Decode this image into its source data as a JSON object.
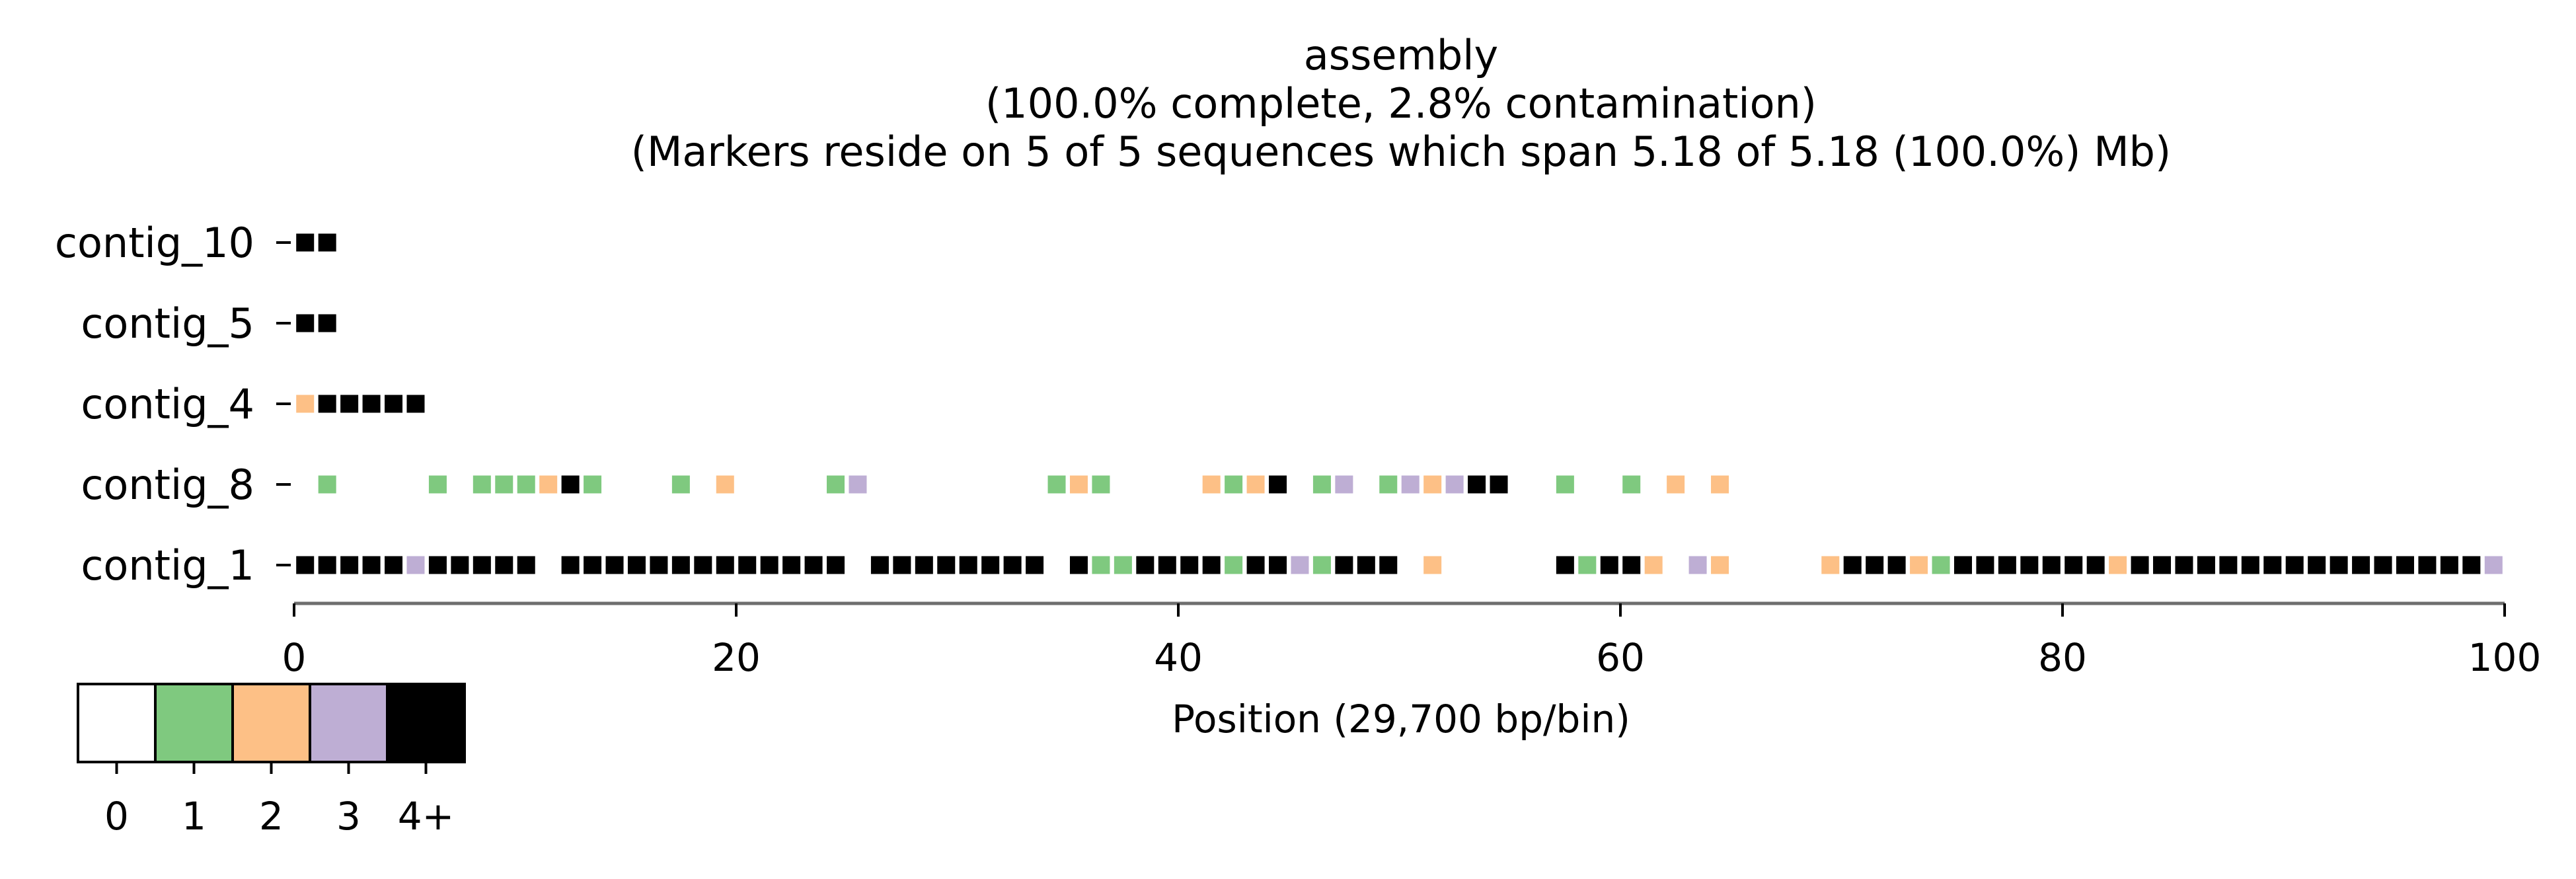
{
  "chart_data": {
    "type": "heatmap",
    "title_lines": [
      "assembly",
      "(100.0% complete, 2.8% contamination)",
      "(Markers reside on 5 of 5 sequences which span 5.18 of 5.18 (100.0%) Mb)"
    ],
    "xlabel": "Position (29,700 bp/bin)",
    "xlim": [
      0,
      100
    ],
    "xticks": [
      0,
      20,
      40,
      60,
      80,
      100
    ],
    "legend": {
      "labels": [
        "0",
        "1",
        "2",
        "3",
        "4+"
      ],
      "colors": [
        "#ffffff",
        "#7fc97f",
        "#fdc086",
        "#beaed4",
        "#000000"
      ]
    },
    "rows": [
      {
        "name": "contig_10",
        "bins": [
          [
            0.5,
            4
          ],
          [
            1.5,
            4
          ]
        ]
      },
      {
        "name": "contig_5",
        "bins": [
          [
            0.5,
            4
          ],
          [
            1.5,
            4
          ]
        ]
      },
      {
        "name": "contig_4",
        "bins": [
          [
            0.5,
            2
          ],
          [
            1.5,
            4
          ],
          [
            2.5,
            4
          ],
          [
            3.5,
            4
          ],
          [
            4.5,
            4
          ],
          [
            5.5,
            4
          ]
        ]
      },
      {
        "name": "contig_8",
        "bins": [
          [
            1.5,
            1
          ],
          [
            6.5,
            1
          ],
          [
            8.5,
            1
          ],
          [
            9.5,
            1
          ],
          [
            10.5,
            1
          ],
          [
            11.5,
            2
          ],
          [
            12.5,
            4
          ],
          [
            13.5,
            1
          ],
          [
            17.5,
            1
          ],
          [
            19.5,
            2
          ],
          [
            24.5,
            1
          ],
          [
            25.5,
            3
          ],
          [
            34.5,
            1
          ],
          [
            35.5,
            2
          ],
          [
            36.5,
            1
          ],
          [
            41.5,
            2
          ],
          [
            42.5,
            1
          ],
          [
            43.5,
            2
          ],
          [
            44.5,
            4
          ],
          [
            46.5,
            1
          ],
          [
            47.5,
            3
          ],
          [
            49.5,
            1
          ],
          [
            50.5,
            3
          ],
          [
            51.5,
            2
          ],
          [
            52.5,
            3
          ],
          [
            53.5,
            4
          ],
          [
            54.5,
            4
          ],
          [
            57.5,
            1
          ],
          [
            60.5,
            1
          ],
          [
            62.5,
            2
          ],
          [
            64.5,
            2
          ]
        ]
      },
      {
        "name": "contig_1",
        "bins": [
          [
            0.5,
            4
          ],
          [
            1.5,
            4
          ],
          [
            2.5,
            4
          ],
          [
            3.5,
            4
          ],
          [
            4.5,
            4
          ],
          [
            5.5,
            3
          ],
          [
            6.5,
            4
          ],
          [
            7.5,
            4
          ],
          [
            8.5,
            4
          ],
          [
            9.5,
            4
          ],
          [
            10.5,
            4
          ],
          [
            12.5,
            4
          ],
          [
            13.5,
            4
          ],
          [
            14.5,
            4
          ],
          [
            15.5,
            4
          ],
          [
            16.5,
            4
          ],
          [
            17.5,
            4
          ],
          [
            18.5,
            4
          ],
          [
            19.5,
            4
          ],
          [
            20.5,
            4
          ],
          [
            21.5,
            4
          ],
          [
            22.5,
            4
          ],
          [
            23.5,
            4
          ],
          [
            24.5,
            4
          ],
          [
            26.5,
            4
          ],
          [
            27.5,
            4
          ],
          [
            28.5,
            4
          ],
          [
            29.5,
            4
          ],
          [
            30.5,
            4
          ],
          [
            31.5,
            4
          ],
          [
            32.5,
            4
          ],
          [
            33.5,
            4
          ],
          [
            35.5,
            4
          ],
          [
            36.5,
            1
          ],
          [
            37.5,
            1
          ],
          [
            38.5,
            4
          ],
          [
            39.5,
            4
          ],
          [
            40.5,
            4
          ],
          [
            41.5,
            4
          ],
          [
            42.5,
            1
          ],
          [
            43.5,
            4
          ],
          [
            44.5,
            4
          ],
          [
            45.5,
            3
          ],
          [
            46.5,
            1
          ],
          [
            47.5,
            4
          ],
          [
            48.5,
            4
          ],
          [
            49.5,
            4
          ],
          [
            51.5,
            2
          ],
          [
            57.5,
            4
          ],
          [
            58.5,
            1
          ],
          [
            59.5,
            4
          ],
          [
            60.5,
            4
          ],
          [
            61.5,
            2
          ],
          [
            63.5,
            3
          ],
          [
            64.5,
            2
          ],
          [
            69.5,
            2
          ],
          [
            70.5,
            4
          ],
          [
            71.5,
            4
          ],
          [
            72.5,
            4
          ],
          [
            73.5,
            2
          ],
          [
            74.5,
            1
          ],
          [
            75.5,
            4
          ],
          [
            76.5,
            4
          ],
          [
            77.5,
            4
          ],
          [
            78.5,
            4
          ],
          [
            79.5,
            4
          ],
          [
            80.5,
            4
          ],
          [
            81.5,
            4
          ],
          [
            82.5,
            2
          ],
          [
            83.5,
            4
          ],
          [
            84.5,
            4
          ],
          [
            85.5,
            4
          ],
          [
            86.5,
            4
          ],
          [
            87.5,
            4
          ],
          [
            88.5,
            4
          ],
          [
            89.5,
            4
          ],
          [
            90.5,
            4
          ],
          [
            91.5,
            4
          ],
          [
            92.5,
            4
          ],
          [
            93.5,
            4
          ],
          [
            94.5,
            4
          ],
          [
            95.5,
            4
          ],
          [
            96.5,
            4
          ],
          [
            97.5,
            4
          ],
          [
            98.5,
            4
          ],
          [
            99.5,
            3
          ]
        ]
      }
    ]
  }
}
